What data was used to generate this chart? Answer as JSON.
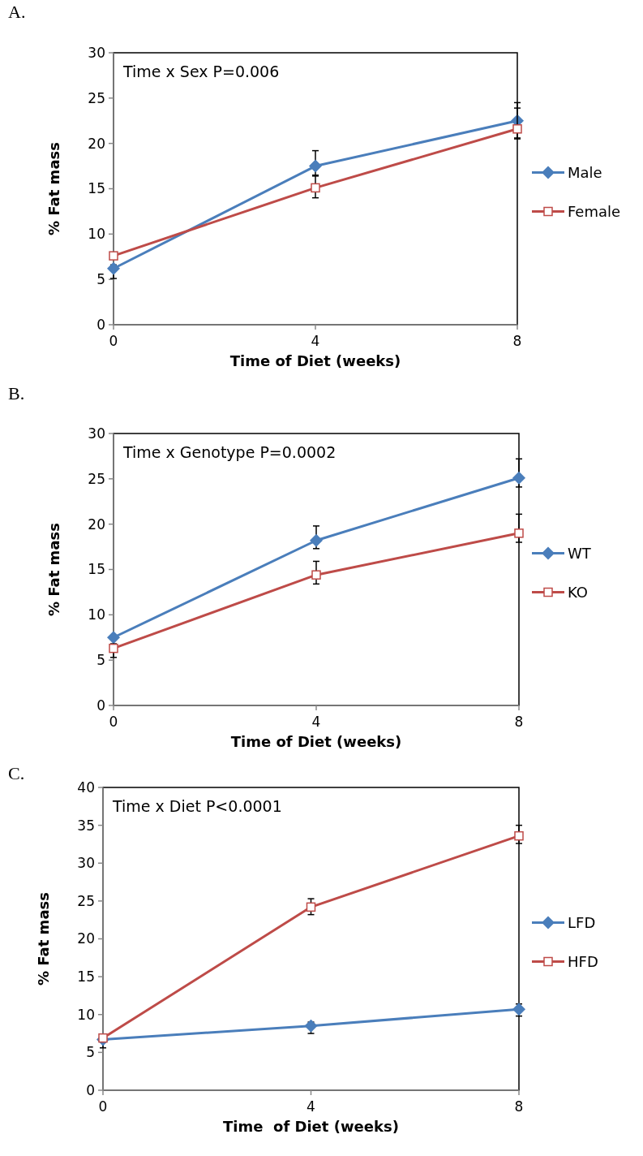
{
  "chart_data": [
    {
      "type": "line",
      "title": "A.",
      "xlabel": "Time of Diet (weeks)",
      "ylabel": "% Fat mass",
      "annotations": [
        "Time x Sex P=0.006"
      ],
      "x": [
        0,
        4,
        8
      ],
      "xlim": [
        0,
        8
      ],
      "xticks": [
        0,
        4,
        8
      ],
      "ylim": [
        0,
        30
      ],
      "yticks": [
        0,
        5,
        10,
        15,
        20,
        25,
        30
      ],
      "legend": "right",
      "grid": false,
      "series": [
        {
          "name": "Male",
          "color": "#4a7ebb",
          "marker": "diamond",
          "values": [
            6.2,
            17.5,
            22.5
          ],
          "errors": [
            [
              5.1,
              6.6
            ],
            [
              16.5,
              19.2
            ],
            [
              20.5,
              24.5
            ]
          ]
        },
        {
          "name": "Female",
          "color": "#be4b48",
          "marker": "square",
          "values": [
            7.6,
            15.1,
            21.6
          ],
          "errors": [
            null,
            [
              14.0,
              16.4
            ],
            [
              20.6,
              23.9
            ]
          ]
        }
      ]
    },
    {
      "type": "line",
      "title": "B.",
      "xlabel": "Time of Diet (weeks)",
      "ylabel": "% Fat mass",
      "annotations": [
        "Time x Genotype P=0.0002"
      ],
      "x": [
        0,
        4,
        8
      ],
      "xlim": [
        0,
        8
      ],
      "xticks": [
        0,
        4,
        8
      ],
      "ylim": [
        0,
        30
      ],
      "yticks": [
        0,
        5,
        10,
        15,
        20,
        25,
        30
      ],
      "legend": "right",
      "grid": false,
      "series": [
        {
          "name": "WT",
          "color": "#4a7ebb",
          "marker": "diamond",
          "values": [
            7.5,
            18.2,
            25.1
          ],
          "errors": [
            null,
            [
              17.3,
              19.8
            ],
            [
              24.1,
              27.2
            ]
          ]
        },
        {
          "name": "KO",
          "color": "#be4b48",
          "marker": "square",
          "values": [
            6.3,
            14.4,
            19.0
          ],
          "errors": [
            [
              5.3,
              6.8
            ],
            [
              13.4,
              15.9
            ],
            [
              18.0,
              21.1
            ]
          ]
        }
      ]
    },
    {
      "type": "line",
      "title": "C.",
      "xlabel": "Time  of Diet (weeks)",
      "ylabel": "% Fat mass",
      "annotations": [
        "Time x Diet P<0.0001"
      ],
      "x": [
        0,
        4,
        8
      ],
      "xlim": [
        0,
        8
      ],
      "xticks": [
        0,
        4,
        8
      ],
      "ylim": [
        0,
        40
      ],
      "yticks": [
        0,
        5,
        10,
        15,
        20,
        25,
        30,
        35,
        40
      ],
      "legend": "right",
      "grid": false,
      "series": [
        {
          "name": "LFD",
          "color": "#4a7ebb",
          "marker": "diamond",
          "values": [
            6.7,
            8.5,
            10.7
          ],
          "errors": [
            [
              5.6,
              7.0
            ],
            [
              7.5,
              9.0
            ],
            [
              9.8,
              11.4
            ]
          ]
        },
        {
          "name": "HFD",
          "color": "#be4b48",
          "marker": "square",
          "values": [
            6.9,
            24.2,
            33.6
          ],
          "errors": [
            null,
            [
              23.2,
              25.3
            ],
            [
              32.6,
              35.0
            ]
          ]
        }
      ]
    }
  ]
}
